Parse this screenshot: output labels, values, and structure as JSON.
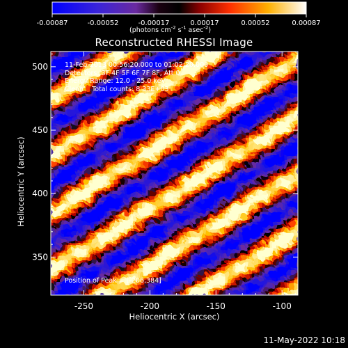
{
  "colorbar": {
    "ticks": [
      "-0.00087",
      "-0.00052",
      "-0.00017",
      "0.00017",
      "0.00052",
      "0.00087"
    ],
    "unit_base": "(photons cm",
    "unit_exp1": "-2",
    "unit_mid1": " s",
    "unit_exp2": "-1",
    "unit_mid2": " asec",
    "unit_exp3": "-2",
    "unit_end": ")"
  },
  "title": "Reconstructed RHESSI Image",
  "overlay": {
    "line1": "11-Feb-2013 00:56:20.000 to 01:02:20.000",
    "line2": "Detectors: 3F 4F 5F 6F 7F 8F, Att 0",
    "line3": "Energy Range: 12.0 - 25.0 keV",
    "line4_a": "Clean",
    "line4_b": "Total counts: 8.33E+03",
    "peak": "Position of Peak = [-206,384]"
  },
  "footer": {
    "timestamp": "11-May-2022 10:18"
  },
  "chart_data": {
    "type": "heatmap",
    "title": "Reconstructed RHESSI Image",
    "xlabel": "Heliocentric X (arcsec)",
    "ylabel": "Heliocentric Y (arcsec)",
    "xlim": [
      -275,
      -88
    ],
    "ylim": [
      320,
      512
    ],
    "x_ticks": [
      -250,
      -200,
      -150,
      -100
    ],
    "y_ticks": [
      350,
      400,
      450,
      500
    ],
    "x_tick_labels": [
      "-250",
      "-200",
      "-150",
      "-100"
    ],
    "y_tick_labels": [
      "350",
      "400",
      "450",
      "500"
    ],
    "color_range": [
      -0.00087,
      0.00087
    ],
    "colormap": [
      "#0000ff",
      "#3a20c8",
      "#6a2aa0",
      "#000000",
      "#b00000",
      "#ff4000",
      "#ffc000",
      "#ffffd0"
    ],
    "peak": [
      -206,
      384
    ],
    "stripe_slope_deg": 33,
    "stripe_spacing_arcsec": 38
  }
}
